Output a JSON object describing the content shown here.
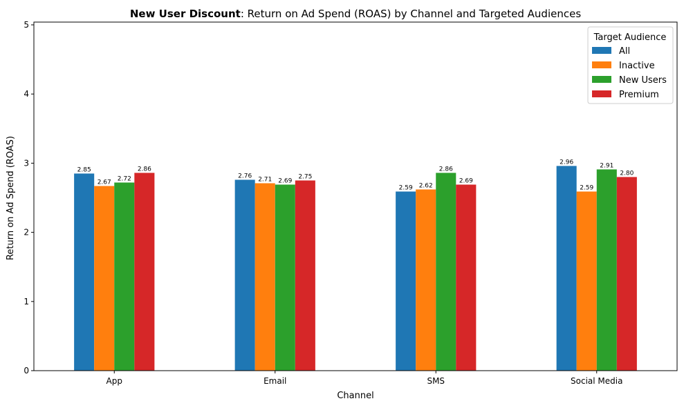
{
  "chart_data": {
    "type": "bar",
    "title_bold": "New User Discount",
    "title_rest": ": Return on Ad Spend (ROAS) by Channel and Targeted Audiences",
    "xlabel": "Channel",
    "ylabel": "Return on Ad Spend (ROAS)",
    "categories": [
      "App",
      "Email",
      "SMS",
      "Social Media"
    ],
    "ylim": [
      0,
      5.04
    ],
    "yticks": [
      "0",
      "1",
      "2",
      "3",
      "4",
      "5"
    ],
    "legend": {
      "title": "Target Audience",
      "placement": "top-right"
    },
    "series": [
      {
        "name": "All",
        "color": "#1f77b4",
        "values": [
          2.85,
          2.76,
          2.59,
          2.96
        ],
        "labels": [
          "2.85",
          "2.76",
          "2.59",
          "2.96"
        ]
      },
      {
        "name": "Inactive",
        "color": "#ff7f0e",
        "values": [
          2.67,
          2.71,
          2.62,
          2.59
        ],
        "labels": [
          "2.67",
          "2.71",
          "2.62",
          "2.59"
        ]
      },
      {
        "name": "New Users",
        "color": "#2ca02c",
        "values": [
          2.72,
          2.69,
          2.86,
          2.91
        ],
        "labels": [
          "2.72",
          "2.69",
          "2.86",
          "2.91"
        ]
      },
      {
        "name": "Premium",
        "color": "#d62728",
        "values": [
          2.86,
          2.75,
          2.69,
          2.8
        ],
        "labels": [
          "2.86",
          "2.75",
          "2.69",
          "2.80"
        ]
      }
    ]
  }
}
